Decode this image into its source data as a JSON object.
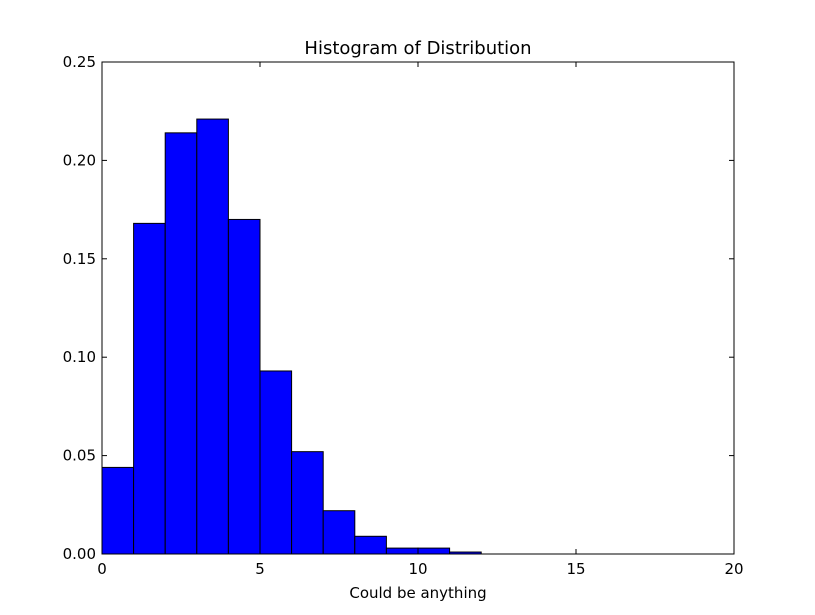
{
  "chart_data": {
    "type": "bar",
    "title": "Histogram of Distribution",
    "xlabel": "Could be anything",
    "ylabel": "",
    "xlim": [
      0,
      20
    ],
    "ylim": [
      0,
      0.25
    ],
    "x_ticks": [
      "0",
      "5",
      "10",
      "15",
      "20"
    ],
    "y_ticks": [
      "0.00",
      "0.05",
      "0.10",
      "0.15",
      "0.20",
      "0.25"
    ],
    "bin_width": 1,
    "bins": [
      {
        "start": 0,
        "end": 1,
        "value": 0.044
      },
      {
        "start": 1,
        "end": 2,
        "value": 0.168
      },
      {
        "start": 2,
        "end": 3,
        "value": 0.214
      },
      {
        "start": 3,
        "end": 4,
        "value": 0.221
      },
      {
        "start": 4,
        "end": 5,
        "value": 0.17
      },
      {
        "start": 5,
        "end": 6,
        "value": 0.093
      },
      {
        "start": 6,
        "end": 7,
        "value": 0.052
      },
      {
        "start": 7,
        "end": 8,
        "value": 0.022
      },
      {
        "start": 8,
        "end": 9,
        "value": 0.009
      },
      {
        "start": 9,
        "end": 10,
        "value": 0.003
      },
      {
        "start": 10,
        "end": 11,
        "value": 0.003
      },
      {
        "start": 11,
        "end": 12,
        "value": 0.001
      }
    ],
    "bar_color": "#0000ff",
    "edge_color": "#000000",
    "grid": false,
    "legend": "none"
  }
}
